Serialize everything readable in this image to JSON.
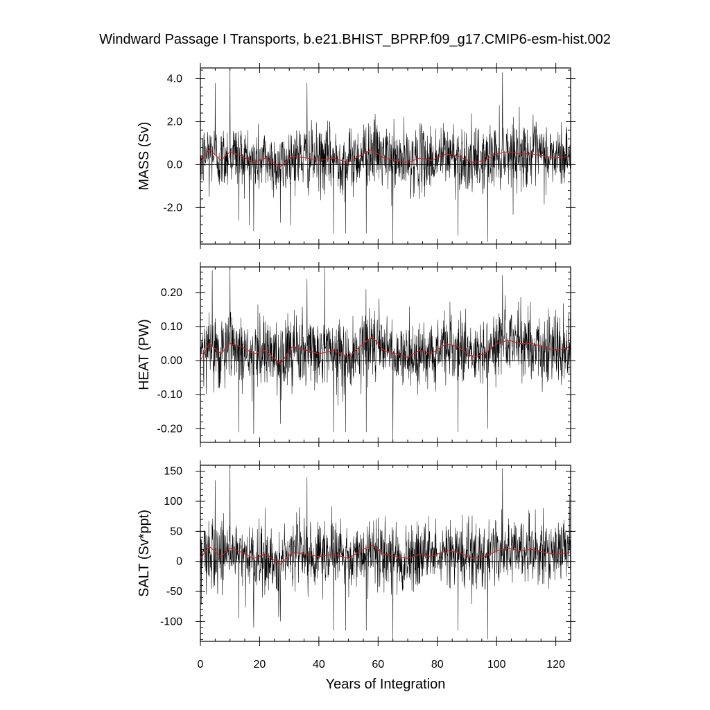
{
  "chart_data": {
    "type": "line",
    "title": "Windward Passage I Transports, b.e21.BHIST_BPRP.f09_g17.CMIP6-esm-hist.002",
    "xlabel": "Years of Integration",
    "xlim": [
      0,
      125
    ],
    "xticks": [
      0,
      20,
      40,
      60,
      80,
      100,
      120
    ],
    "xtick_labels": [
      "0",
      "20",
      "40",
      "60",
      "80",
      "100",
      "120"
    ],
    "colors": {
      "monthly": "#000000",
      "running_mean": "#cc2222"
    },
    "panels": [
      {
        "ylabel": "MASS (Sv)",
        "ylim": [
          -3.7,
          4.5
        ],
        "yticks": [
          4.0,
          2.0,
          0.0,
          -2.0
        ],
        "ytick_labels": [
          "4.0",
          "2.0",
          "0.0",
          "-2.0"
        ],
        "base": 0.3,
        "amp": 0.75,
        "spikes": [
          [
            3,
            -1.5
          ],
          [
            5,
            3.8
          ],
          [
            10,
            4.5
          ],
          [
            13,
            -2.6
          ],
          [
            18,
            -3.1
          ],
          [
            27,
            -2.7
          ],
          [
            36,
            3.8
          ],
          [
            45,
            -3.2
          ],
          [
            49,
            -3.2
          ],
          [
            56,
            -3.2
          ],
          [
            65,
            -3.7
          ],
          [
            87,
            -3.3
          ],
          [
            97,
            -3.6
          ],
          [
            102,
            4.3
          ]
        ],
        "running_mean": [
          [
            0,
            0.1
          ],
          [
            3,
            0.7
          ],
          [
            7,
            0.2
          ],
          [
            10,
            0.6
          ],
          [
            14,
            0.4
          ],
          [
            18,
            0.1
          ],
          [
            22,
            0.3
          ],
          [
            27,
            -0.1
          ],
          [
            31,
            0.4
          ],
          [
            36,
            0.3
          ],
          [
            40,
            0.2
          ],
          [
            45,
            0.3
          ],
          [
            50,
            0.1
          ],
          [
            55,
            0.5
          ],
          [
            58,
            0.7
          ],
          [
            62,
            0.3
          ],
          [
            66,
            0.2
          ],
          [
            70,
            0.1
          ],
          [
            74,
            0.3
          ],
          [
            78,
            0.2
          ],
          [
            83,
            0.5
          ],
          [
            87,
            0.4
          ],
          [
            92,
            0.1
          ],
          [
            96,
            0.2
          ],
          [
            100,
            0.5
          ],
          [
            104,
            0.6
          ],
          [
            108,
            0.5
          ],
          [
            112,
            0.5
          ],
          [
            116,
            0.4
          ],
          [
            120,
            0.3
          ],
          [
            125,
            0.4
          ]
        ]
      },
      {
        "ylabel": "HEAT (PW)",
        "ylim": [
          -0.24,
          0.275
        ],
        "yticks": [
          0.2,
          0.1,
          0.0,
          -0.1,
          -0.2
        ],
        "ytick_labels": [
          "0.20",
          "0.10",
          "0.00",
          "-0.10",
          "-0.20"
        ],
        "base": 0.03,
        "amp": 0.05,
        "spikes": [
          [
            4,
            0.265
          ],
          [
            10,
            0.27
          ],
          [
            13,
            -0.21
          ],
          [
            18,
            -0.215
          ],
          [
            27,
            -0.185
          ],
          [
            36,
            0.24
          ],
          [
            42,
            0.275
          ],
          [
            45,
            -0.21
          ],
          [
            49,
            -0.21
          ],
          [
            56,
            -0.21
          ],
          [
            65,
            -0.24
          ],
          [
            87,
            -0.21
          ],
          [
            97,
            -0.2
          ],
          [
            102,
            0.25
          ]
        ],
        "running_mean": [
          [
            0,
            0.0
          ],
          [
            3,
            0.05
          ],
          [
            7,
            0.02
          ],
          [
            10,
            0.05
          ],
          [
            14,
            0.04
          ],
          [
            18,
            0.02
          ],
          [
            22,
            0.03
          ],
          [
            27,
            -0.01
          ],
          [
            31,
            0.04
          ],
          [
            36,
            0.03
          ],
          [
            40,
            0.02
          ],
          [
            45,
            0.03
          ],
          [
            50,
            0.01
          ],
          [
            55,
            0.05
          ],
          [
            58,
            0.07
          ],
          [
            62,
            0.03
          ],
          [
            66,
            0.02
          ],
          [
            70,
            0.01
          ],
          [
            74,
            0.03
          ],
          [
            78,
            0.02
          ],
          [
            83,
            0.05
          ],
          [
            87,
            0.04
          ],
          [
            92,
            0.01
          ],
          [
            96,
            0.02
          ],
          [
            100,
            0.05
          ],
          [
            104,
            0.06
          ],
          [
            108,
            0.05
          ],
          [
            112,
            0.05
          ],
          [
            116,
            0.04
          ],
          [
            120,
            0.03
          ],
          [
            125,
            0.04
          ]
        ]
      },
      {
        "ylabel": "SALT (Sv*ppt)",
        "ylim": [
          -133,
          160
        ],
        "yticks": [
          150,
          100,
          50,
          0,
          -50,
          -100
        ],
        "ytick_labels": [
          "150",
          "100",
          "50",
          "0",
          "-50",
          "-100"
        ],
        "base": 10,
        "amp": 28,
        "spikes": [
          [
            2,
            -55
          ],
          [
            5,
            135
          ],
          [
            10,
            160
          ],
          [
            13,
            -95
          ],
          [
            18,
            -110
          ],
          [
            27,
            -100
          ],
          [
            36,
            140
          ],
          [
            45,
            -115
          ],
          [
            49,
            -115
          ],
          [
            56,
            -115
          ],
          [
            65,
            -133
          ],
          [
            87,
            -115
          ],
          [
            97,
            -130
          ],
          [
            102,
            155
          ]
        ],
        "running_mean": [
          [
            0,
            5
          ],
          [
            3,
            25
          ],
          [
            7,
            8
          ],
          [
            10,
            22
          ],
          [
            14,
            15
          ],
          [
            18,
            5
          ],
          [
            22,
            12
          ],
          [
            27,
            -5
          ],
          [
            31,
            15
          ],
          [
            36,
            12
          ],
          [
            40,
            8
          ],
          [
            45,
            12
          ],
          [
            50,
            5
          ],
          [
            55,
            20
          ],
          [
            58,
            27
          ],
          [
            62,
            12
          ],
          [
            66,
            8
          ],
          [
            70,
            5
          ],
          [
            74,
            12
          ],
          [
            78,
            8
          ],
          [
            83,
            18
          ],
          [
            87,
            15
          ],
          [
            92,
            5
          ],
          [
            96,
            8
          ],
          [
            100,
            18
          ],
          [
            104,
            22
          ],
          [
            108,
            18
          ],
          [
            112,
            20
          ],
          [
            116,
            15
          ],
          [
            120,
            12
          ],
          [
            125,
            15
          ]
        ]
      }
    ]
  }
}
